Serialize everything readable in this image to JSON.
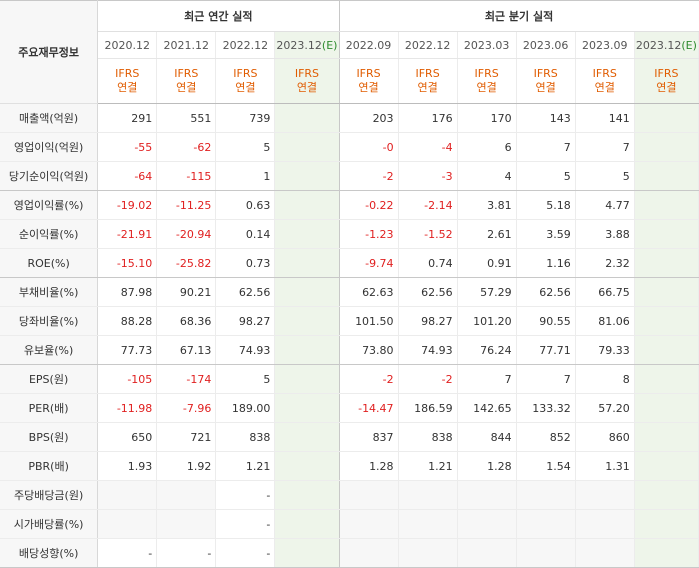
{
  "header": {
    "row_label": "주요재무정보",
    "annual_title": "최근 연간 실적",
    "quarter_title": "최근 분기 실적",
    "annual_dates": [
      "2020.12",
      "2021.12",
      "2022.12"
    ],
    "annual_estimate": {
      "date": "2023.12",
      "mark": "(E)"
    },
    "quarter_dates": [
      "2022.09",
      "2022.12",
      "2023.03",
      "2023.06",
      "2023.09"
    ],
    "quarter_estimate": {
      "date": "2023.12",
      "mark": "(E)"
    },
    "ifrs_line1": "IFRS",
    "ifrs_line2": "연결"
  },
  "rows": [
    {
      "label": "매출액(억원)",
      "annual": [
        "291",
        "551",
        "739"
      ],
      "quarter": [
        "203",
        "176",
        "170",
        "143",
        "141"
      ]
    },
    {
      "label": "영업이익(억원)",
      "annual": [
        "-55",
        "-62",
        "5"
      ],
      "quarter": [
        "-0",
        "-4",
        "6",
        "7",
        "7"
      ]
    },
    {
      "label": "당기순이익(억원)",
      "annual": [
        "-64",
        "-115",
        "1"
      ],
      "quarter": [
        "-2",
        "-3",
        "4",
        "5",
        "5"
      ]
    },
    {
      "label": "영업이익률(%)",
      "annual": [
        "-19.02",
        "-11.25",
        "0.63"
      ],
      "quarter": [
        "-0.22",
        "-2.14",
        "3.81",
        "5.18",
        "4.77"
      ]
    },
    {
      "label": "순이익률(%)",
      "annual": [
        "-21.91",
        "-20.94",
        "0.14"
      ],
      "quarter": [
        "-1.23",
        "-1.52",
        "2.61",
        "3.59",
        "3.88"
      ]
    },
    {
      "label": "ROE(%)",
      "annual": [
        "-15.10",
        "-25.82",
        "0.73"
      ],
      "quarter": [
        "-9.74",
        "0.74",
        "0.91",
        "1.16",
        "2.32"
      ]
    },
    {
      "label": "부채비율(%)",
      "annual": [
        "87.98",
        "90.21",
        "62.56"
      ],
      "quarter": [
        "62.63",
        "62.56",
        "57.29",
        "62.56",
        "66.75"
      ]
    },
    {
      "label": "당좌비율(%)",
      "annual": [
        "88.28",
        "68.36",
        "98.27"
      ],
      "quarter": [
        "101.50",
        "98.27",
        "101.20",
        "90.55",
        "81.06"
      ]
    },
    {
      "label": "유보율(%)",
      "annual": [
        "77.73",
        "67.13",
        "74.93"
      ],
      "quarter": [
        "73.80",
        "74.93",
        "76.24",
        "77.71",
        "79.33"
      ]
    },
    {
      "label": "EPS(원)",
      "annual": [
        "-105",
        "-174",
        "5"
      ],
      "quarter": [
        "-2",
        "-2",
        "7",
        "7",
        "8"
      ]
    },
    {
      "label": "PER(배)",
      "annual": [
        "-11.98",
        "-7.96",
        "189.00"
      ],
      "quarter": [
        "-14.47",
        "186.59",
        "142.65",
        "133.32",
        "57.20"
      ]
    },
    {
      "label": "BPS(원)",
      "annual": [
        "650",
        "721",
        "838"
      ],
      "quarter": [
        "837",
        "838",
        "844",
        "852",
        "860"
      ]
    },
    {
      "label": "PBR(배)",
      "annual": [
        "1.93",
        "1.92",
        "1.21"
      ],
      "quarter": [
        "1.28",
        "1.21",
        "1.28",
        "1.54",
        "1.31"
      ]
    },
    {
      "label": "주당배당금(원)",
      "annual": [
        "",
        "",
        "-"
      ],
      "quarter": [
        "",
        "",
        "",
        "",
        ""
      ]
    },
    {
      "label": "시가배당률(%)",
      "annual": [
        "",
        "",
        "-"
      ],
      "quarter": [
        "",
        "",
        "",
        "",
        ""
      ]
    },
    {
      "label": "배당성향(%)",
      "annual": [
        "-",
        "-",
        "-"
      ],
      "quarter": [
        "",
        "",
        "",
        "",
        ""
      ]
    }
  ],
  "colors": {
    "negative": "#e02020",
    "ifrs": "#e05c00",
    "estimate_bg": "#eef5ea",
    "estimate_mark": "#2e8b2e"
  }
}
